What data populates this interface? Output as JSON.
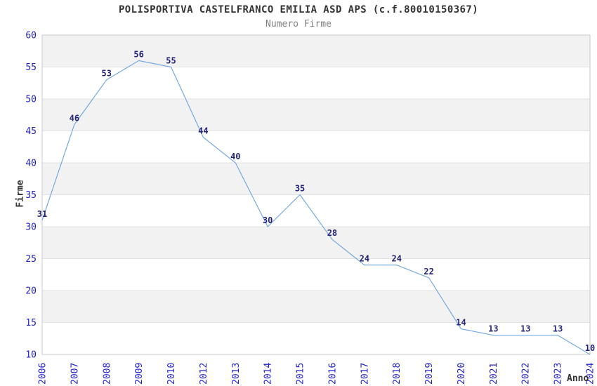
{
  "chart_data": {
    "type": "line",
    "title": "POLISPORTIVA CASTELFRANCO EMILIA ASD APS (c.f.80010150367)",
    "subtitle": "Numero Firme",
    "xlabel": "Anno",
    "ylabel": "Firme",
    "categories": [
      "2006",
      "2007",
      "2008",
      "2009",
      "2010",
      "2012",
      "2013",
      "2014",
      "2015",
      "2016",
      "2017",
      "2018",
      "2019",
      "2020",
      "2021",
      "2022",
      "2023",
      "2024"
    ],
    "values": [
      31,
      46,
      53,
      56,
      55,
      44,
      40,
      30,
      35,
      28,
      24,
      24,
      22,
      14,
      13,
      13,
      13,
      10
    ],
    "ylim": [
      10,
      60
    ],
    "ytick_step": 5,
    "yticks": [
      60,
      55,
      50,
      45,
      40,
      35,
      30,
      25,
      20,
      15,
      10
    ],
    "grid": "alternating-horizontal-bands",
    "legend_position": "none",
    "colors": {
      "line": "#74a9e2",
      "tick_label": "#2222cc",
      "value_label": "#252578",
      "band": "#f2f2f2",
      "gridline": "#e2e2e2",
      "plot_border": "#c9c9c9",
      "title_text": "#333333",
      "subtitle_text": "#808080"
    }
  }
}
